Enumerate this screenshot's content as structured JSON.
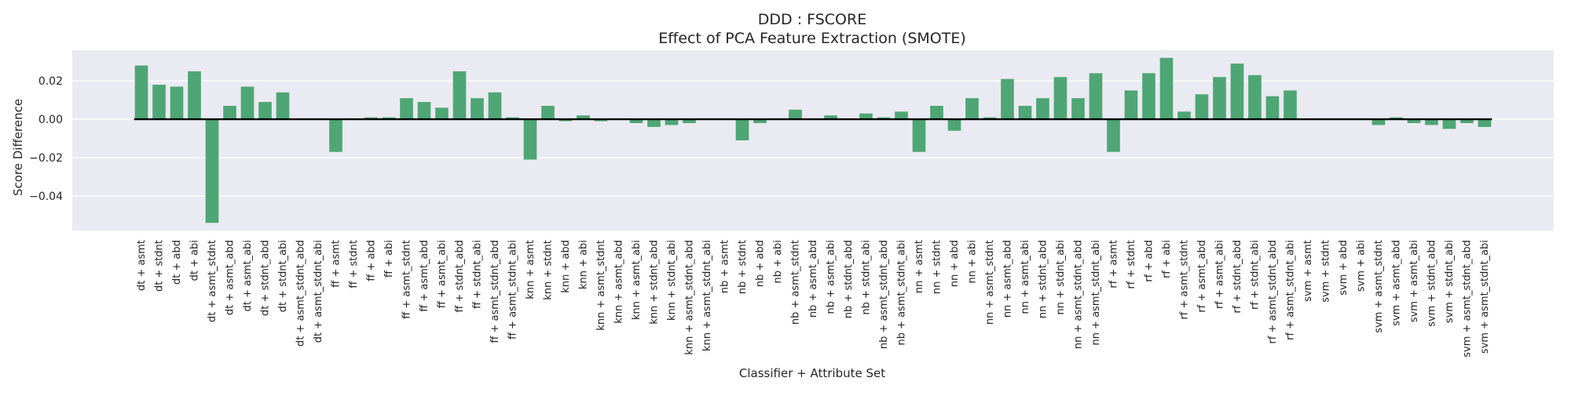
{
  "chart_data": {
    "type": "bar",
    "title": "DDD : FSCORE",
    "subtitle": "Effect of PCA Feature Extraction (SMOTE)",
    "xlabel": "Classifier + Attribute Set",
    "ylabel": "Score Difference",
    "ylim": [
      -0.058,
      0.036
    ],
    "yticks": [
      0.02,
      0.0,
      -0.02,
      -0.04
    ],
    "ytick_labels": [
      "0.02",
      "0.00",
      "−0.02",
      "−0.04"
    ],
    "grid": true,
    "bar_color": "#4ea674",
    "background": "#eaeaf2",
    "baseline": 0,
    "categories": [
      "dt + asmt",
      "dt + stdnt",
      "dt + abd",
      "dt + abi",
      "dt + asmt_stdnt",
      "dt + asmt_abd",
      "dt + asmt_abi",
      "dt + stdnt_abd",
      "dt + stdnt_abi",
      "dt + asmt_stdnt_abd",
      "dt + asmt_stdnt_abi",
      "ff + asmt",
      "ff + stdnt",
      "ff + abd",
      "ff + abi",
      "ff + asmt_stdnt",
      "ff + asmt_abd",
      "ff + asmt_abi",
      "ff + stdnt_abd",
      "ff + stdnt_abi",
      "ff + asmt_stdnt_abd",
      "ff + asmt_stdnt_abi",
      "knn + asmt",
      "knn + stdnt",
      "knn + abd",
      "knn + abi",
      "knn + asmt_stdnt",
      "knn + asmt_abd",
      "knn + asmt_abi",
      "knn + stdnt_abd",
      "knn + stdnt_abi",
      "knn + asmt_stdnt_abd",
      "knn + asmt_stdnt_abi",
      "nb + asmt",
      "nb + stdnt",
      "nb + abd",
      "nb + abi",
      "nb + asmt_stdnt",
      "nb + asmt_abd",
      "nb + asmt_abi",
      "nb + stdnt_abd",
      "nb + stdnt_abi",
      "nb + asmt_stdnt_abd",
      "nb + asmt_stdnt_abi",
      "nn + asmt",
      "nn + stdnt",
      "nn + abd",
      "nn + abi",
      "nn + asmt_stdnt",
      "nn + asmt_abd",
      "nn + asmt_abi",
      "nn + stdnt_abd",
      "nn + stdnt_abi",
      "nn + asmt_stdnt_abd",
      "nn + asmt_stdnt_abi",
      "rf + asmt",
      "rf + stdnt",
      "rf + abd",
      "rf + abi",
      "rf + asmt_stdnt",
      "rf + asmt_abd",
      "rf + asmt_abi",
      "rf + stdnt_abd",
      "rf + stdnt_abi",
      "rf + asmt_stdnt_abd",
      "rf + asmt_stdnt_abi",
      "svm + asmt",
      "svm + stdnt",
      "svm + abd",
      "svm + abi",
      "svm + asmt_stdnt",
      "svm + asmt_abd",
      "svm + asmt_abi",
      "svm + stdnt_abd",
      "svm + stdnt_abi",
      "svm + asmt_stdnt_abd",
      "svm + asmt_stdnt_abi"
    ],
    "values": [
      0.028,
      0.018,
      0.017,
      0.025,
      -0.054,
      0.007,
      0.017,
      0.009,
      0.014,
      0.0,
      0.0,
      -0.017,
      0.0,
      0.001,
      0.001,
      0.011,
      0.009,
      0.006,
      0.025,
      0.011,
      0.014,
      0.001,
      -0.021,
      0.007,
      -0.001,
      0.002,
      -0.001,
      0.0,
      -0.002,
      -0.004,
      -0.003,
      -0.002,
      0.0,
      0.0,
      -0.011,
      -0.002,
      0.0,
      0.005,
      0.0,
      0.002,
      0.0,
      0.003,
      0.001,
      0.004,
      -0.017,
      0.007,
      -0.006,
      0.011,
      0.001,
      0.021,
      0.007,
      0.011,
      0.022,
      0.011,
      0.024,
      -0.017,
      0.015,
      0.024,
      0.032,
      0.004,
      0.013,
      0.022,
      0.029,
      0.023,
      0.012,
      0.015,
      0.0,
      0.0,
      0.0,
      0.0,
      -0.003,
      0.001,
      -0.002,
      -0.003,
      -0.005,
      -0.002,
      -0.004
    ]
  }
}
